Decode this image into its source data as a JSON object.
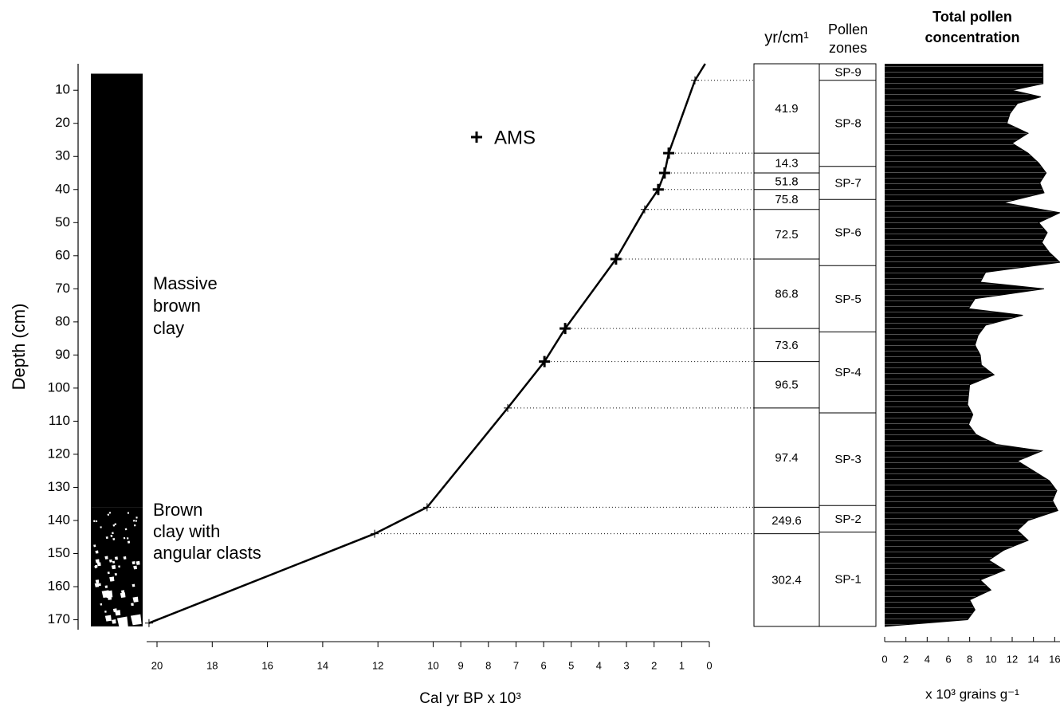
{
  "depth_axis": {
    "label": "Depth (cm)",
    "ylim": [
      2,
      173
    ],
    "yticks": [
      10,
      20,
      30,
      40,
      50,
      60,
      70,
      80,
      90,
      100,
      110,
      120,
      130,
      140,
      150,
      160,
      170
    ]
  },
  "lithology": {
    "units": [
      {
        "label": [
          "Massive",
          "brown",
          "clay"
        ],
        "top": 5,
        "bottom": 136
      },
      {
        "label": [
          "Brown",
          "clay with",
          "angular clasts"
        ],
        "top": 136,
        "bottom": 172
      }
    ]
  },
  "chart_data": [
    {
      "type": "line",
      "x_label": "Cal yr BP x 10³",
      "xlim": [
        20,
        0
      ],
      "xticks": [
        20,
        18,
        16,
        14,
        12,
        10,
        9,
        8,
        7,
        6,
        5,
        4,
        3,
        2,
        1,
        0
      ],
      "x": [
        0.15,
        0.52,
        1.47,
        1.62,
        1.85,
        2.34,
        3.38,
        5.22,
        5.97,
        7.3,
        10.22,
        12.12,
        20.29
      ],
      "y": [
        2,
        7,
        29,
        35,
        40,
        46,
        61,
        82,
        92,
        106,
        136,
        144,
        171
      ],
      "color": "#000000",
      "ams": {
        "name": "AMS",
        "x": [
          1.47,
          1.62,
          1.85,
          3.38,
          5.22,
          5.97
        ],
        "y": [
          29,
          35,
          40,
          61,
          82,
          92
        ]
      }
    },
    {
      "type": "area",
      "title": [
        "Total pollen",
        "concentration"
      ],
      "x_label": "x 10³ grains g⁻¹",
      "xlim": [
        0,
        16.5
      ],
      "xticks": [
        0,
        2,
        4,
        6,
        8,
        10,
        12,
        14,
        16
      ],
      "color": "#000000",
      "depth": [
        2,
        5,
        8,
        10,
        12,
        14,
        17,
        20,
        23,
        26,
        29,
        32,
        35,
        38,
        41,
        44,
        47,
        50,
        53,
        56,
        59,
        62,
        65,
        68,
        70,
        73,
        76,
        78,
        81,
        84,
        87,
        90,
        93,
        96,
        99,
        102,
        105,
        108,
        111,
        114,
        117,
        119,
        122,
        125,
        128,
        131,
        134,
        137,
        140,
        143,
        146,
        149,
        152,
        155,
        158,
        161,
        164,
        167,
        170,
        172
      ],
      "values": [
        14.9,
        14.9,
        14.9,
        12.0,
        14.7,
        12.5,
        11.8,
        11.5,
        13.5,
        12.0,
        13.5,
        14.5,
        15.2,
        14.6,
        15.0,
        11.2,
        16.5,
        14.5,
        15.3,
        14.8,
        15.5,
        16.5,
        9.5,
        9.0,
        15.0,
        8.5,
        7.9,
        13.0,
        9.5,
        8.8,
        8.5,
        9.0,
        9.1,
        10.3,
        8.0,
        7.9,
        7.8,
        8.3,
        7.9,
        8.6,
        10.5,
        14.8,
        12.5,
        14.0,
        15.5,
        16.2,
        15.8,
        16.3,
        13.5,
        12.5,
        13.5,
        11.2,
        9.8,
        11.3,
        9.0,
        10.0,
        8.0,
        8.5,
        7.8,
        0
      ]
    }
  ],
  "sed_rate": {
    "title": "yr/cm¹",
    "boundaries": [
      2,
      29,
      35,
      40,
      46,
      61,
      82,
      92,
      106,
      136,
      144,
      172
    ],
    "values": [
      41.9,
      14.3,
      51.8,
      75.8,
      72.5,
      86.8,
      73.6,
      96.5,
      97.4,
      249.6,
      302.4
    ]
  },
  "pollen_zones": {
    "title": [
      "Pollen",
      "zones"
    ],
    "boundaries": [
      2,
      7,
      33,
      43,
      63,
      83,
      107.5,
      135.5,
      143.5,
      172
    ],
    "labels": [
      "SP-9",
      "SP-8",
      "SP-7",
      "SP-6",
      "SP-5",
      "SP-4",
      "SP-3",
      "SP-2",
      "SP-1"
    ]
  }
}
